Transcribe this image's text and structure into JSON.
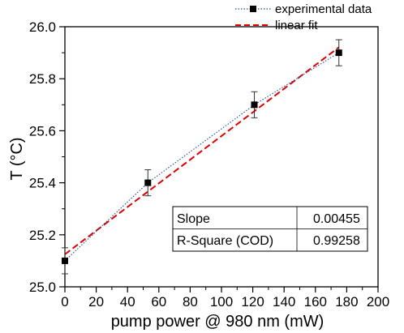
{
  "chart_data": {
    "type": "scatter",
    "xlabel": "pump power @ 980 nm (mW)",
    "ylabel": "T (°C)",
    "xlim": [
      0,
      200
    ],
    "ylim": [
      25.0,
      26.0
    ],
    "xticks": [
      0,
      20,
      40,
      60,
      80,
      100,
      120,
      140,
      160,
      180,
      200
    ],
    "yticks": [
      25.0,
      25.2,
      25.4,
      25.6,
      25.8,
      26.0
    ],
    "xtick_labels": [
      "0",
      "20",
      "40",
      "60",
      "80",
      "100",
      "120",
      "140",
      "160",
      "180",
      "200"
    ],
    "ytick_labels": [
      "25.0",
      "25.2",
      "25.4",
      "25.6",
      "25.8",
      "26.0"
    ],
    "grid": false,
    "legend_position": "top-right",
    "series": [
      {
        "name": "experimental data",
        "style": "dotted line with square markers and error bars",
        "color": "#1f4e99",
        "marker_color": "#000000",
        "x": [
          0,
          53,
          121,
          175
        ],
        "y": [
          25.1,
          25.4,
          25.7,
          25.9
        ],
        "error": [
          0.05,
          0.05,
          0.05,
          0.05
        ]
      },
      {
        "name": "linear fit",
        "style": "dashed line",
        "color": "#e00000",
        "x": [
          0,
          175
        ],
        "y": [
          25.125,
          25.921
        ]
      }
    ],
    "fit_table": {
      "rows": [
        {
          "label": "Slope",
          "value": "0.00455"
        },
        {
          "label": "R-Square (COD)",
          "value": "0.99258"
        }
      ]
    }
  }
}
